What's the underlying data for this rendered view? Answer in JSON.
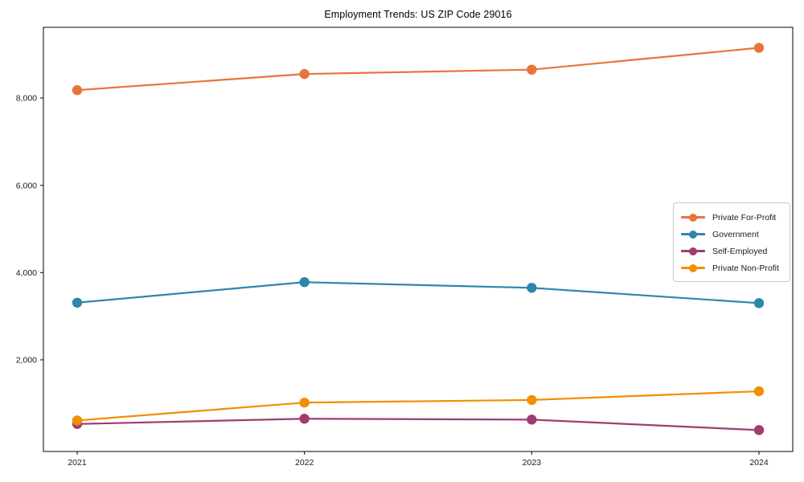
{
  "chart_data": {
    "type": "line",
    "title": "Employment Trends: US ZIP Code 29016",
    "xlabel": "",
    "ylabel": "",
    "categories": [
      "2021",
      "2022",
      "2023",
      "2024"
    ],
    "series": [
      {
        "name": "Private For-Profit",
        "color": "#E8743B",
        "values": [
          8180,
          8550,
          8650,
          9150
        ]
      },
      {
        "name": "Government",
        "color": "#2E86AB",
        "values": [
          3310,
          3780,
          3650,
          3300
        ]
      },
      {
        "name": "Self-Employed",
        "color": "#A23B72",
        "values": [
          530,
          650,
          630,
          390
        ]
      },
      {
        "name": "Private Non-Profit",
        "color": "#F18F01",
        "values": [
          610,
          1020,
          1080,
          1280
        ]
      }
    ],
    "ylim": [
      -100,
      9620
    ],
    "yticks": {
      "values": [
        2000,
        4000,
        6000,
        8000
      ],
      "labels": [
        "2,000",
        "4,000",
        "6,000",
        "8,000"
      ]
    },
    "grid": false,
    "legend_position": "center-right",
    "marker": "circle",
    "frame": true
  }
}
